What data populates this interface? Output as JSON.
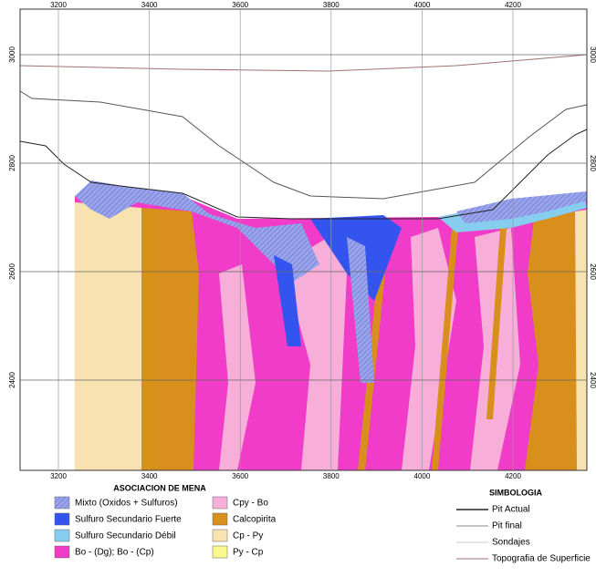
{
  "section": {
    "x_ticks": [
      3200,
      3400,
      3600,
      3800,
      4000,
      4200
    ],
    "y_ticks": [
      3000,
      2800,
      2600,
      2400
    ]
  },
  "legend_ore": {
    "title": "ASOCIACION DE MENA",
    "items": [
      {
        "label": "Mixto (Oxidos + Sulfuros)",
        "color": "#8e98e4"
      },
      {
        "label": "Sulfuro Secundario Fuerte",
        "color": "#3454f0"
      },
      {
        "label": "Sulfuro Secundario Débil",
        "color": "#86cdf0"
      },
      {
        "label": "Bo - (Dg);   Bo - (Cp)",
        "color": "#f03cc8"
      },
      {
        "label": "Cpy - Bo",
        "color": "#f7afd9"
      },
      {
        "label": "Calcopirita",
        "color": "#d88f1c"
      },
      {
        "label": "Cp - Py",
        "color": "#f8e3b0"
      },
      {
        "label": "Py - Cp",
        "color": "#f8f88c"
      }
    ]
  },
  "legend_symbols": {
    "title": "SIMBOLOGIA",
    "items": [
      {
        "label": "Pit Actual",
        "color": "#222222"
      },
      {
        "label": "Pit final",
        "color": "#888888"
      },
      {
        "label": "Sondajes",
        "color": "#cccccc"
      },
      {
        "label": "Topografia de Superficie",
        "color": "#a07070"
      }
    ]
  }
}
